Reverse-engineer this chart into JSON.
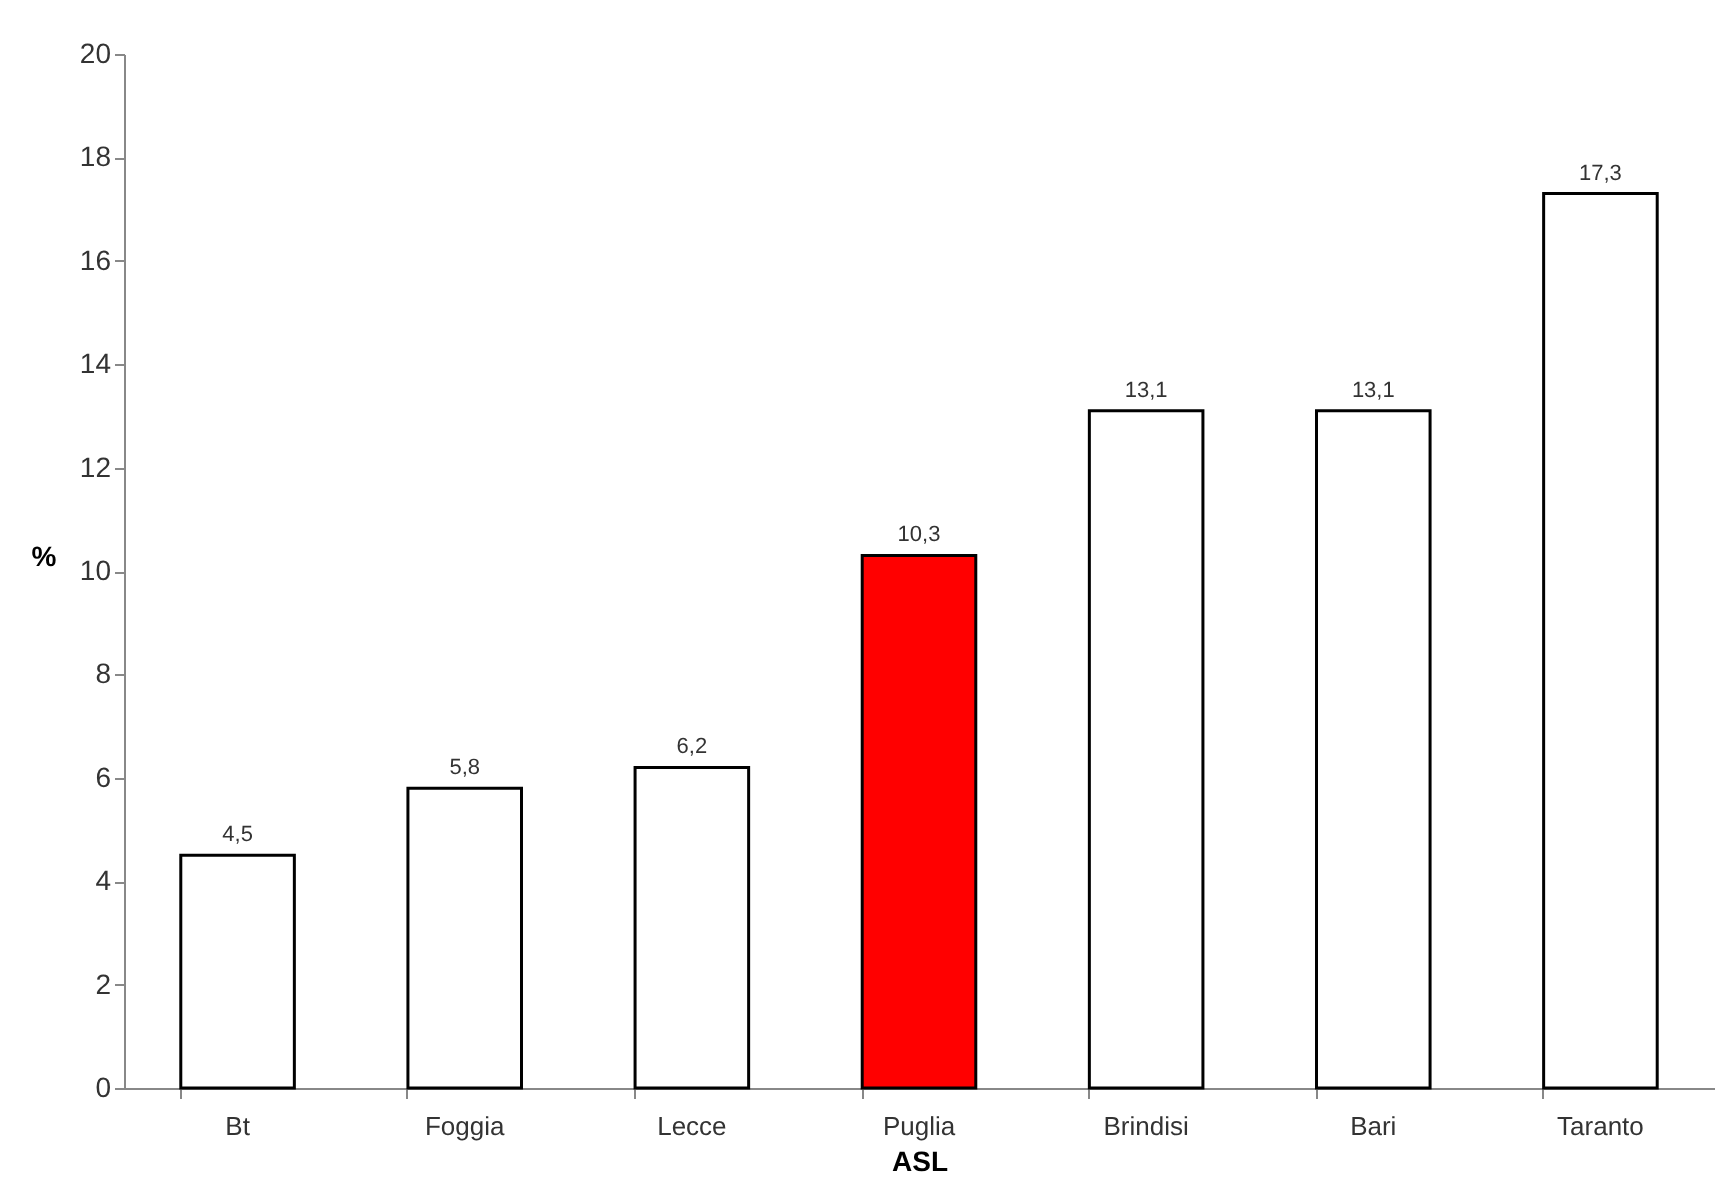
{
  "chart_data": {
    "type": "bar",
    "xlabel": "ASL",
    "ylabel": "%",
    "categories": [
      "Bt",
      "Foggia",
      "Lecce",
      "Puglia",
      "Brindisi",
      "Bari",
      "Taranto"
    ],
    "values": [
      4.5,
      5.8,
      6.2,
      10.3,
      13.1,
      13.1,
      17.3
    ],
    "value_labels": [
      "4,5",
      "5,8",
      "6,2",
      "10,3",
      "13,1",
      "13,1",
      "17,3"
    ],
    "colors": [
      "#ffffff",
      "#ffffff",
      "#ffffff",
      "#ff0000",
      "#ffffff",
      "#ffffff",
      "#ffffff"
    ],
    "ylim": [
      0,
      20
    ],
    "yticks": [
      0,
      2,
      4,
      6,
      8,
      10,
      12,
      14,
      16,
      18,
      20
    ],
    "grid": false
  }
}
